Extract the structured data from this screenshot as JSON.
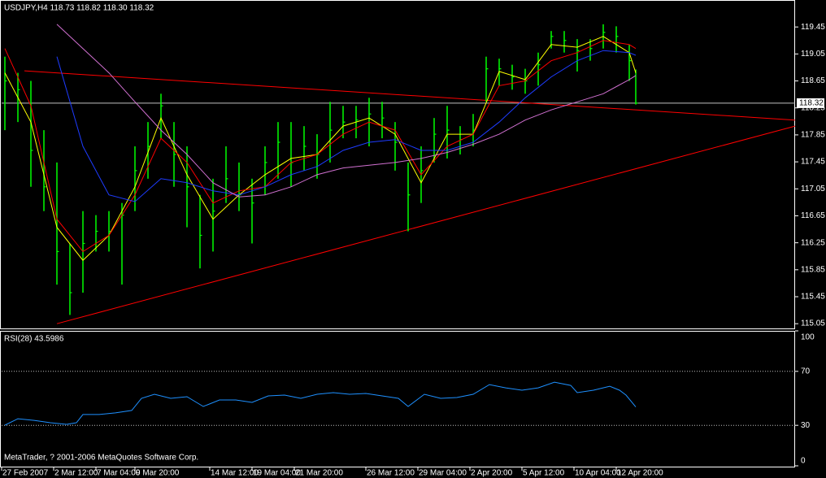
{
  "chart_data": [
    {
      "type": "ohlc",
      "title": "USDJPY,H4 118.73 118.82 118.30 118.32",
      "color": "#00ff00",
      "x": [
        1,
        5,
        9,
        13,
        17,
        21,
        25,
        29,
        33,
        37,
        41,
        45,
        49,
        53,
        57,
        61,
        65,
        69,
        73,
        77,
        81,
        85,
        89,
        93,
        97,
        101,
        105,
        109,
        113,
        117,
        121,
        125,
        129,
        133,
        137,
        141,
        145,
        149,
        153,
        157,
        161,
        165,
        169,
        173,
        177,
        181,
        185,
        189,
        193,
        195
      ],
      "high": [
        119.01,
        118.77,
        118.65,
        117.92,
        117.44,
        116.24,
        116.72,
        116.66,
        116.72,
        116.84,
        117.68,
        118.04,
        118.46,
        118.04,
        117.68,
        116.96,
        117.2,
        117.68,
        117.44,
        117.2,
        117.68,
        118.04,
        118.04,
        117.98,
        117.86,
        118.34,
        118.28,
        118.28,
        118.4,
        118.34,
        118.04,
        117.44,
        117.68,
        118.1,
        118.28,
        117.98,
        118.16,
        119.01,
        118.98,
        118.89,
        118.83,
        119.07,
        119.39,
        119.39,
        119.27,
        119.27,
        119.49,
        119.46,
        119.19,
        118.82
      ],
      "low": [
        117.92,
        118.04,
        117.08,
        116.72,
        115.63,
        115.18,
        115.51,
        116.12,
        116.12,
        115.63,
        116.72,
        117.2,
        117.8,
        117.08,
        116.48,
        115.87,
        116.12,
        116.84,
        116.72,
        116.24,
        116.96,
        117.2,
        117.08,
        117.32,
        117.2,
        117.44,
        117.8,
        117.8,
        117.68,
        117.8,
        117.32,
        116.42,
        116.84,
        117.44,
        117.5,
        117.56,
        117.68,
        118.34,
        118.58,
        118.52,
        118.46,
        118.58,
        119.13,
        119.07,
        118.79,
        118.95,
        119.13,
        119.07,
        118.65,
        118.3
      ],
      "close": [
        118.65,
        118.52,
        117.62,
        117.08,
        116.12,
        115.51,
        116.24,
        116.42,
        116.42,
        116.66,
        117.32,
        117.68,
        118.28,
        117.56,
        117.08,
        116.36,
        116.72,
        117.2,
        116.96,
        116.84,
        117.44,
        117.74,
        117.44,
        117.68,
        117.56,
        117.92,
        118.04,
        118.07,
        118.16,
        118.1,
        117.74,
        116.96,
        117.32,
        117.86,
        117.92,
        117.78,
        117.92,
        118.83,
        118.83,
        118.71,
        118.65,
        118.89,
        119.31,
        119.25,
        119.1,
        119.13,
        119.37,
        119.31,
        118.95,
        118.32
      ],
      "series": [
        {
          "color": "#ffff00",
          "x": [
            1,
            9,
            17,
            25,
            33,
            41,
            49,
            57,
            65,
            73,
            81,
            89,
            97,
            105,
            113,
            121,
            129,
            137,
            145,
            153,
            161,
            169,
            177,
            185,
            193,
            195
          ],
          "values": [
            118.77,
            118.04,
            116.48,
            115.99,
            116.36,
            117.08,
            118.1,
            117.26,
            116.6,
            116.96,
            117.26,
            117.5,
            117.56,
            117.98,
            118.1,
            117.86,
            117.14,
            117.86,
            117.86,
            118.79,
            118.67,
            119.19,
            119.15,
            119.31,
            119.07,
            118.77
          ]
        },
        {
          "color": "#ff0000",
          "x": [
            1,
            9,
            17,
            25,
            33,
            41,
            49,
            57,
            65,
            73,
            81,
            89,
            97,
            105,
            113,
            121,
            129,
            137,
            145,
            153,
            161,
            169,
            177,
            185,
            193,
            195
          ],
          "values": [
            119.13,
            118.28,
            116.6,
            116.12,
            116.36,
            116.96,
            117.8,
            117.44,
            116.84,
            117.02,
            117.08,
            117.44,
            117.56,
            117.86,
            118.04,
            117.92,
            117.26,
            117.68,
            117.86,
            118.58,
            118.65,
            118.95,
            119.07,
            119.25,
            119.19,
            119.13
          ]
        },
        {
          "color": "#1e3cff",
          "x": [
            1,
            9,
            17,
            25,
            33,
            41,
            49,
            57,
            65,
            73,
            81,
            89,
            97,
            105,
            113,
            121,
            129,
            137,
            145,
            153,
            161,
            169,
            177,
            185,
            193,
            195
          ],
          "values": [
            null,
            null,
            119.01,
            117.68,
            116.96,
            116.86,
            117.2,
            117.14,
            117.02,
            116.96,
            117.08,
            117.26,
            117.38,
            117.62,
            117.74,
            117.78,
            117.62,
            117.62,
            117.74,
            118.04,
            118.4,
            118.71,
            118.95,
            119.1,
            119.07,
            119.03
          ]
        },
        {
          "color": "#d070d0",
          "x": [
            1,
            9,
            17,
            25,
            33,
            41,
            49,
            57,
            65,
            73,
            81,
            89,
            97,
            105,
            113,
            121,
            129,
            137,
            145,
            153,
            161,
            169,
            177,
            185,
            193,
            195
          ],
          "values": [
            null,
            null,
            119.49,
            119.13,
            118.77,
            118.34,
            117.92,
            117.56,
            117.14,
            116.93,
            116.96,
            117.08,
            117.26,
            117.36,
            117.4,
            117.44,
            117.5,
            117.59,
            117.71,
            117.86,
            118.07,
            118.22,
            118.34,
            118.46,
            118.67,
            118.73
          ]
        }
      ],
      "trendlines": [
        {
          "color": "#ff0000",
          "x": [
            7,
            244
          ],
          "values": [
            118.8,
            118.07
          ]
        },
        {
          "color": "#ff0000",
          "x": [
            17,
            244
          ],
          "values": [
            115.05,
            117.98
          ]
        }
      ],
      "current_price": 118.32,
      "xlim": [
        0,
        244
      ],
      "ylim": [
        114.98,
        119.85
      ],
      "yticks": [
        115.05,
        115.45,
        115.85,
        116.25,
        116.65,
        117.05,
        117.45,
        117.85,
        118.25,
        118.65,
        119.05,
        119.45
      ],
      "xticks": [
        {
          "value": 0,
          "label": "27 Feb 2007"
        },
        {
          "value": 16,
          "label": "2 Mar 12:00"
        },
        {
          "value": 29,
          "label": "7 Mar 04:00"
        },
        {
          "value": 41,
          "label": "9 Mar 20:00"
        },
        {
          "value": 64,
          "label": "14 Mar 12:00"
        },
        {
          "value": 77,
          "label": "19 Mar 04:00"
        },
        {
          "value": 90,
          "label": "21 Mar 20:00"
        },
        {
          "value": 112,
          "label": "26 Mar 12:00"
        },
        {
          "value": 128,
          "label": "29 Mar 04:00"
        },
        {
          "value": 144,
          "label": "2 Apr 20:00"
        },
        {
          "value": 160,
          "label": "5 Apr 12:00"
        },
        {
          "value": 176,
          "label": "10 Apr 04:00"
        },
        {
          "value": 189,
          "label": "12 Apr 20:00"
        }
      ]
    },
    {
      "type": "line",
      "title": "RSI(28) 43.5986",
      "color": "#1e90ff",
      "x": [
        1,
        5,
        10,
        15,
        20,
        23,
        25,
        30,
        35,
        40,
        43,
        47,
        52,
        57,
        62,
        67,
        72,
        77,
        82,
        87,
        92,
        97,
        102,
        107,
        112,
        117,
        122,
        125,
        130,
        135,
        140,
        145,
        150,
        155,
        160,
        165,
        170,
        175,
        177,
        182,
        187,
        190,
        192,
        195
      ],
      "values": [
        30.1,
        34.9,
        33.7,
        31.9,
        30.7,
        31.9,
        38.0,
        38.0,
        39.2,
        41.0,
        50.0,
        53.0,
        50.0,
        51.2,
        44.0,
        48.8,
        48.8,
        47.0,
        51.8,
        52.4,
        50.0,
        53.0,
        54.2,
        53.0,
        53.6,
        51.8,
        50.0,
        44.0,
        53.0,
        50.0,
        50.6,
        53.0,
        60.2,
        57.8,
        56.0,
        57.8,
        62.0,
        59.6,
        54.2,
        56.0,
        59.0,
        56.0,
        52.4,
        43.6
      ],
      "xlim": [
        0,
        244
      ],
      "ylim": [
        0,
        100
      ],
      "yticks": [
        0,
        30,
        70,
        100
      ],
      "levels": [
        30,
        70
      ]
    }
  ],
  "footer": "MetaTrader, ? 2001-2006 MetaQuotes Software Corp."
}
